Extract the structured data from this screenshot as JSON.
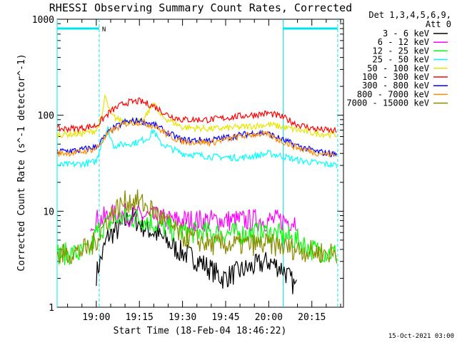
{
  "chart_data": {
    "type": "line",
    "title": "RHESSI Observing Summary Count Rates, Corrected",
    "xlabel": "Start Time (18-Feb-04 18:46:22)",
    "ylabel": "Corrected Count Rate (s^-1 detector^-1)",
    "yscale": "log",
    "ylim": [
      1,
      1000
    ],
    "xlim": [
      "18:46:22",
      "20:26:00"
    ],
    "x_unit": "time HH:MM",
    "x_ticks": [
      "19:00",
      "19:15",
      "19:30",
      "19:45",
      "20:00",
      "20:15"
    ],
    "y_ticks": [
      "1",
      "10",
      "100",
      "1000"
    ],
    "legend_header": [
      "Det 1,3,4,5,6,9,",
      "Att 0"
    ],
    "legend_position": "right",
    "timestamp": "15-Oct-2021 03:00",
    "annotations": [
      {
        "text": "N",
        "x": "19:01"
      }
    ],
    "spacecraft_night": [
      {
        "start": "18:46:22",
        "end": "19:01:00",
        "level": 800
      },
      {
        "start": "20:05:00",
        "end": "20:24:00",
        "level": 800
      }
    ],
    "series": [
      {
        "name": "3 - 6 keV",
        "color": "#000000",
        "x": [
          "18:46",
          "19:00",
          "19:04",
          "19:08",
          "19:12",
          "19:16",
          "19:20",
          "19:24",
          "19:28",
          "19:36",
          "19:44",
          "19:52",
          "20:00",
          "20:05",
          "20:10"
        ],
        "y": [
          null,
          2.2,
          5.5,
          6.5,
          9,
          7,
          6,
          5,
          4,
          3,
          2,
          2.5,
          3,
          2.5,
          1.5
        ]
      },
      {
        "name": "6 - 12 keV",
        "color": "#ff00ff",
        "x": [
          "18:58",
          "19:00",
          "19:05",
          "19:10",
          "19:15",
          "19:20",
          "19:25",
          "19:30",
          "19:40",
          "19:50",
          "20:00",
          "20:05",
          "20:10"
        ],
        "y": [
          8,
          8,
          9,
          9.2,
          9,
          8.6,
          8,
          8,
          8,
          8,
          8,
          8,
          8
        ]
      },
      {
        "name": "12 - 25 keV",
        "color": "#00ff00",
        "x": [
          "18:46",
          "18:54",
          "18:58",
          "19:00",
          "19:03",
          "19:06",
          "19:10",
          "19:14",
          "19:18",
          "19:22",
          "19:30",
          "19:40",
          "19:50",
          "20:00",
          "20:05",
          "20:10",
          "20:15",
          "20:24"
        ],
        "y": [
          3.6,
          3.6,
          4,
          6,
          7,
          8,
          8.5,
          8.5,
          8,
          7,
          6,
          6,
          5.8,
          6,
          5.5,
          5,
          4,
          3.6
        ]
      },
      {
        "name": "25 - 50 keV",
        "color": "#00ffff",
        "x": [
          "18:46",
          "18:54",
          "18:58",
          "19:00",
          "19:02",
          "19:04",
          "19:06",
          "19:10",
          "19:14",
          "19:18",
          "19:20",
          "19:22",
          "19:26",
          "19:30",
          "19:40",
          "19:50",
          "19:56",
          "20:00",
          "20:04",
          "20:10",
          "20:16",
          "20:24"
        ],
        "y": [
          30,
          31,
          32,
          33,
          55,
          72,
          48,
          50,
          52,
          58,
          70,
          52,
          45,
          40,
          37,
          36,
          38,
          40,
          38,
          34,
          32,
          30
        ]
      },
      {
        "name": "50 - 100 keV",
        "color": "#e6e600",
        "x": [
          "18:46",
          "18:54",
          "18:58",
          "19:00",
          "19:02",
          "19:03",
          "19:05",
          "19:08",
          "19:12",
          "19:16",
          "19:19",
          "19:20",
          "19:22",
          "19:25",
          "19:30",
          "19:40",
          "19:50",
          "19:56",
          "20:00",
          "20:05",
          "20:10",
          "20:16",
          "20:24"
        ],
        "y": [
          63,
          64,
          67,
          70,
          95,
          160,
          100,
          90,
          88,
          85,
          120,
          140,
          100,
          90,
          75,
          72,
          75,
          78,
          80,
          75,
          70,
          65,
          62
        ]
      },
      {
        "name": "100 - 300 keV",
        "color": "#ff0000",
        "x": [
          "18:46",
          "18:54",
          "19:00",
          "19:05",
          "19:10",
          "19:15",
          "19:20",
          "19:25",
          "19:30",
          "19:40",
          "19:50",
          "19:56",
          "20:00",
          "20:05",
          "20:10",
          "20:16",
          "20:24"
        ],
        "y": [
          72,
          73,
          78,
          110,
          135,
          140,
          125,
          100,
          90,
          90,
          98,
          102,
          105,
          95,
          80,
          72,
          68
        ]
      },
      {
        "name": "300 - 800 keV",
        "color": "#0000ff",
        "x": [
          "18:46",
          "18:54",
          "19:00",
          "19:05",
          "19:10",
          "19:15",
          "19:20",
          "19:25",
          "19:30",
          "19:40",
          "19:50",
          "19:56",
          "20:00",
          "20:05",
          "20:10",
          "20:16",
          "20:24"
        ],
        "y": [
          42,
          43,
          47,
          70,
          85,
          88,
          80,
          65,
          55,
          55,
          62,
          66,
          64,
          55,
          48,
          42,
          39
        ]
      },
      {
        "name": "800 - 7000 keV",
        "color": "#ff8c00",
        "x": [
          "18:46",
          "18:54",
          "19:00",
          "19:05",
          "19:10",
          "19:15",
          "19:20",
          "19:25",
          "19:30",
          "19:40",
          "19:50",
          "19:56",
          "20:00",
          "20:05",
          "20:10",
          "20:16",
          "20:24"
        ],
        "y": [
          40,
          41,
          45,
          68,
          82,
          85,
          78,
          62,
          53,
          52,
          60,
          64,
          62,
          53,
          46,
          41,
          38
        ]
      },
      {
        "name": "7000 - 15000 keV",
        "color": "#8b8b00",
        "x": [
          "18:46",
          "18:50",
          "18:54",
          "18:58",
          "19:00",
          "19:03",
          "19:06",
          "19:10",
          "19:14",
          "19:18",
          "19:22",
          "19:26",
          "19:30",
          "19:40",
          "19:50",
          "20:00",
          "20:05",
          "20:10",
          "20:15",
          "20:24"
        ],
        "y": [
          3.4,
          3.6,
          3.8,
          4.2,
          5,
          7.5,
          10,
          12.5,
          13,
          11,
          9,
          7,
          5.5,
          4.5,
          4.5,
          4.5,
          4.3,
          4,
          3.8,
          3.6
        ]
      }
    ]
  }
}
